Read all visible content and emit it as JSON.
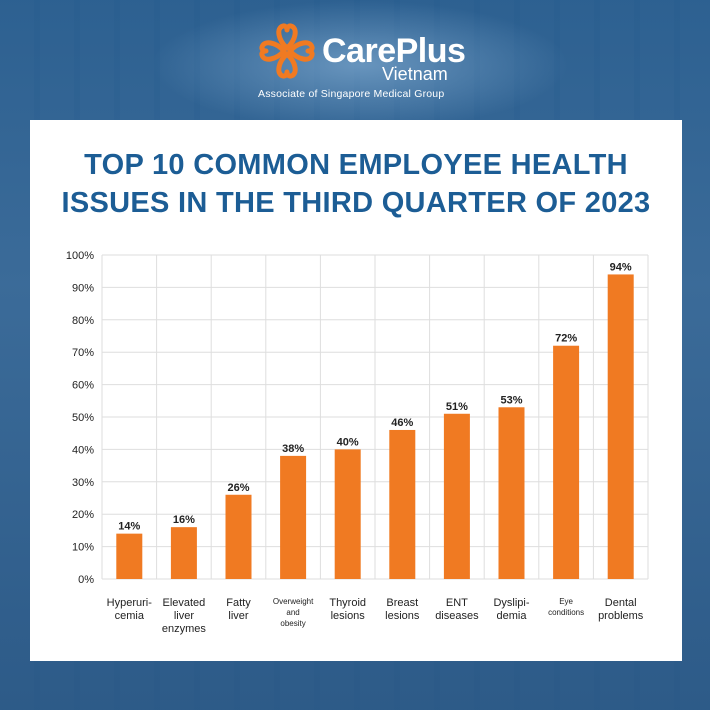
{
  "brand": {
    "name": "CarePlus",
    "sub": "Vietnam",
    "tagline": "Associate of Singapore Medical Group",
    "logo_icon": "careplus-heart-logo-icon",
    "colors": {
      "orange": "#f07a22",
      "blue": "#1c5d95"
    }
  },
  "chart_data": {
    "type": "bar",
    "title_lines": [
      "TOP 10 COMMON EMPLOYEE HEALTH",
      "ISSUES IN THE THIRD QUARTER OF 2023"
    ],
    "categories": [
      [
        "Hyperuri-",
        "cemia"
      ],
      [
        "Elevated",
        "liver",
        "enzymes"
      ],
      [
        "Fatty",
        "liver"
      ],
      [
        "Overweight",
        "and",
        "obesity"
      ],
      [
        "Thyroid",
        "lesions"
      ],
      [
        "Breast",
        "lesions"
      ],
      [
        "ENT",
        "diseases"
      ],
      [
        "Dyslipi-",
        "demia"
      ],
      [
        "Eye",
        "conditions"
      ],
      [
        "Dental",
        "problems"
      ]
    ],
    "values": [
      14,
      16,
      26,
      38,
      40,
      46,
      51,
      53,
      72,
      94
    ],
    "value_labels": [
      "14%",
      "16%",
      "26%",
      "38%",
      "40%",
      "46%",
      "51%",
      "53%",
      "72%",
      "94%"
    ],
    "ylim": [
      0,
      100
    ],
    "yticks": [
      "0%",
      "10%",
      "20%",
      "30%",
      "40%",
      "50%",
      "60%",
      "70%",
      "80%",
      "90%",
      "100%"
    ],
    "grid": true,
    "bar_color": "#f07a22"
  }
}
